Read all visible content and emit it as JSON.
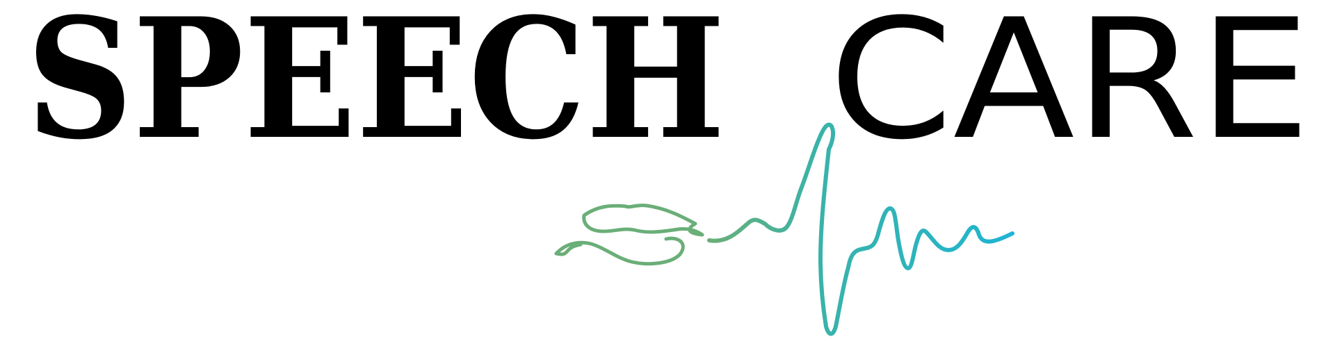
{
  "logo": {
    "word_speech": "SPEECH",
    "word_care": "CARE",
    "colors": {
      "text": "#000000",
      "lips_green": "#6aae78",
      "wave_teal": "#3ab3a8",
      "wave_cyan": "#1fb4d2"
    },
    "icons": [
      "lips-icon",
      "heartbeat-wave-icon"
    ]
  }
}
